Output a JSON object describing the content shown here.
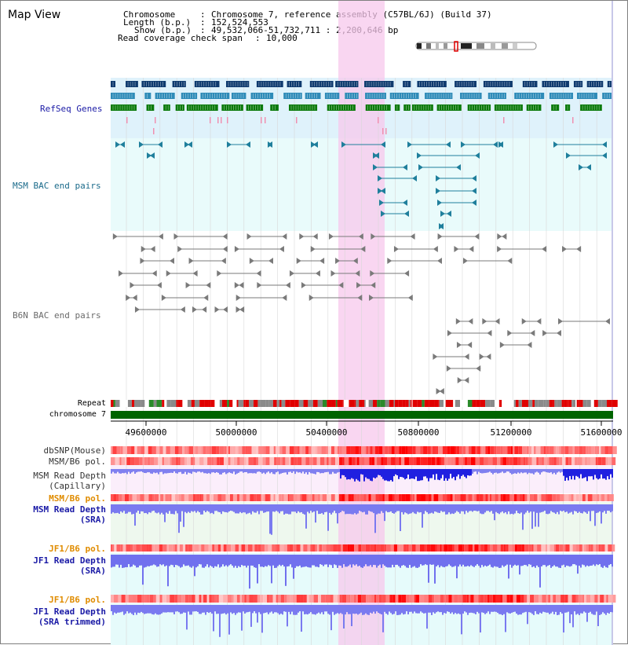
{
  "page": {
    "title": "Map View"
  },
  "info": {
    "chromosome_key": "Chromosome",
    "chromosome_val": "Chromosome 7, reference assembly (C57BL/6J) (Build 37)",
    "length_key": "Length (b.p.)",
    "length_val": "152,524,553",
    "show_key": "Show (b.p.)",
    "show_val": "49,532,066-51,732,711 : 2,200,646 bp",
    "span_key": "Read coverage check span",
    "span_val": "10,000",
    "sep": ":"
  },
  "tracks": {
    "refseq": "RefSeq Genes",
    "msm_bac": "MSM BAC end pairs",
    "b6n_bac": "B6N BAC end pairs",
    "repeat": "Repeat",
    "chromosome": "chromosome 7",
    "dbsnp": "dbSNP(Mouse)",
    "msm_b6_pol_1": "MSM/B6 pol.",
    "msm_depth_cap_1": "MSM Read Depth",
    "msm_depth_cap_2": "(Capillary)",
    "msm_b6_pol_2": "MSM/B6 pol.",
    "msm_depth_sra_1": "MSM Read Depth",
    "msm_depth_sra_2": "(SRA)",
    "jf1_b6_pol_1": "JF1/B6 pol.",
    "jf1_depth_sra_1": "JF1 Read Depth",
    "jf1_depth_sra_2": "(SRA)",
    "jf1_b6_pol_2": "JF1/B6 pol.",
    "jf1_depth_trim_1": "JF1 Read Depth",
    "jf1_depth_trim_2": "(SRA trimmed)"
  },
  "axis": {
    "ticks": [
      "49600000",
      "50000000",
      "50400000",
      "50800000",
      "51200000",
      "51600000"
    ]
  },
  "colors": {
    "refseq_label": "#1a1aa6",
    "msm_bac_label": "#1a6a8a",
    "b6n_label": "#6a6a6a",
    "pol_orange": "#e08c00",
    "depth_blue": "#1a1aa6",
    "highlight": "#f7c8ec",
    "chromosome": "#006400"
  }
}
